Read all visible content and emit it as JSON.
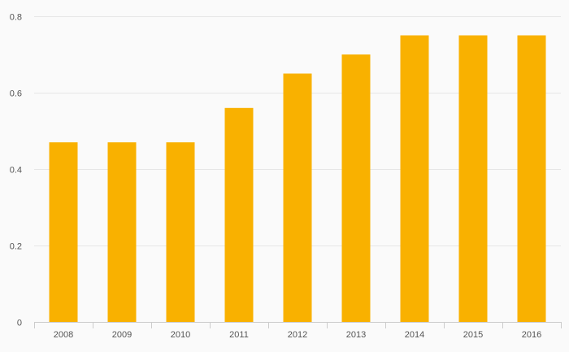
{
  "chart_data": {
    "type": "bar",
    "categories": [
      "2008",
      "2009",
      "2010",
      "2011",
      "2012",
      "2013",
      "2014",
      "2015",
      "2016"
    ],
    "values": [
      0.47,
      0.47,
      0.47,
      0.56,
      0.65,
      0.7,
      0.75,
      0.75,
      0.75
    ],
    "title": "",
    "xlabel": "",
    "ylabel": "",
    "ylim": [
      0,
      0.8
    ],
    "yticks": [
      0,
      0.2,
      0.4,
      0.6,
      0.8
    ],
    "ytick_labels": [
      "0",
      "0.2",
      "0.4",
      "0.6",
      "0.8"
    ],
    "grid": true,
    "legend": "none",
    "colors": {
      "bar": "#F9B100",
      "grid": "#e6e6e6",
      "axis": "#cccccc",
      "background": "#fafafa"
    }
  }
}
